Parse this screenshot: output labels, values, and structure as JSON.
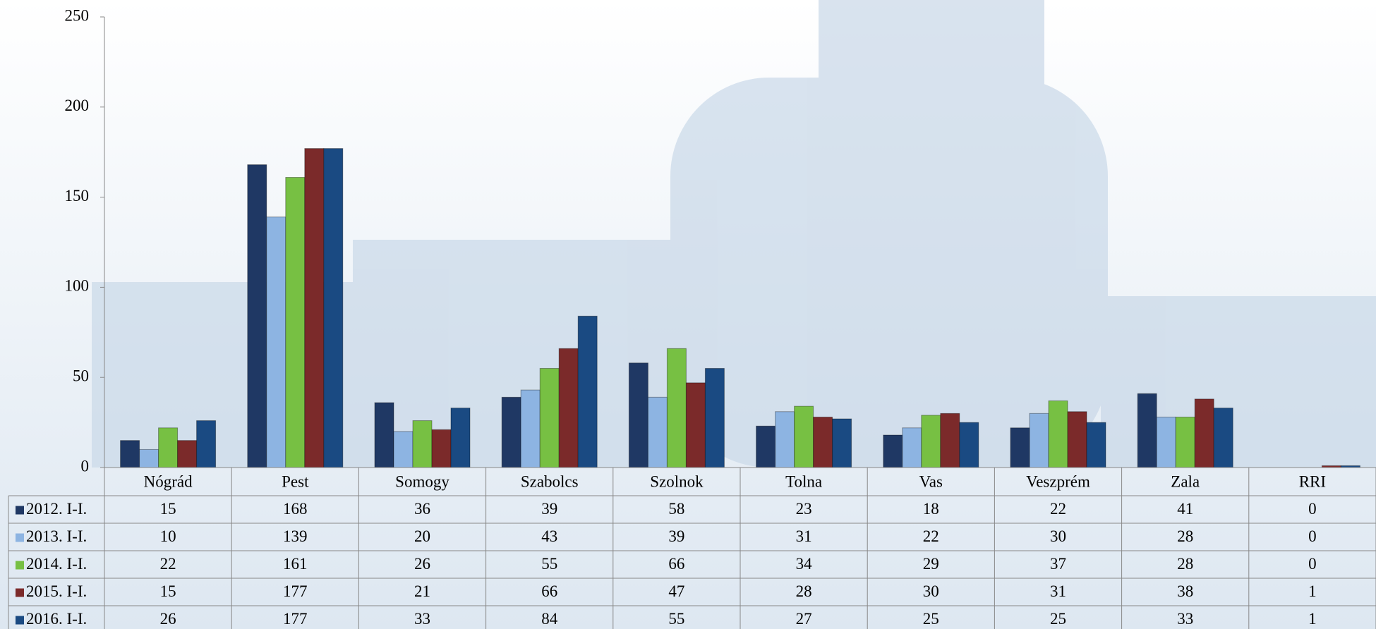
{
  "chart_data": {
    "type": "bar",
    "categories": [
      "Nógrád",
      "Pest",
      "Somogy",
      "Szabolcs",
      "Szolnok",
      "Tolna",
      "Vas",
      "Veszprém",
      "Zala",
      "RRI"
    ],
    "series": [
      {
        "name": "2012. I-I.",
        "color": "#1f3864",
        "values": [
          15,
          168,
          36,
          39,
          58,
          23,
          18,
          22,
          41,
          0
        ]
      },
      {
        "name": "2013. I-I.",
        "color": "#8db4e2",
        "values": [
          10,
          139,
          20,
          43,
          39,
          31,
          22,
          30,
          28,
          0
        ]
      },
      {
        "name": "2014. I-I.",
        "color": "#77c043",
        "values": [
          22,
          161,
          26,
          55,
          66,
          34,
          29,
          37,
          28,
          0
        ]
      },
      {
        "name": "2015. I-I.",
        "color": "#7b2a2a",
        "values": [
          15,
          177,
          21,
          66,
          47,
          28,
          30,
          31,
          38,
          1
        ]
      },
      {
        "name": "2016. I-I.",
        "color": "#1a4a82",
        "values": [
          26,
          177,
          33,
          84,
          55,
          27,
          25,
          25,
          33,
          1
        ]
      }
    ],
    "ylim": [
      0,
      250
    ],
    "yticks": [
      0,
      50,
      100,
      150,
      200,
      250
    ]
  }
}
